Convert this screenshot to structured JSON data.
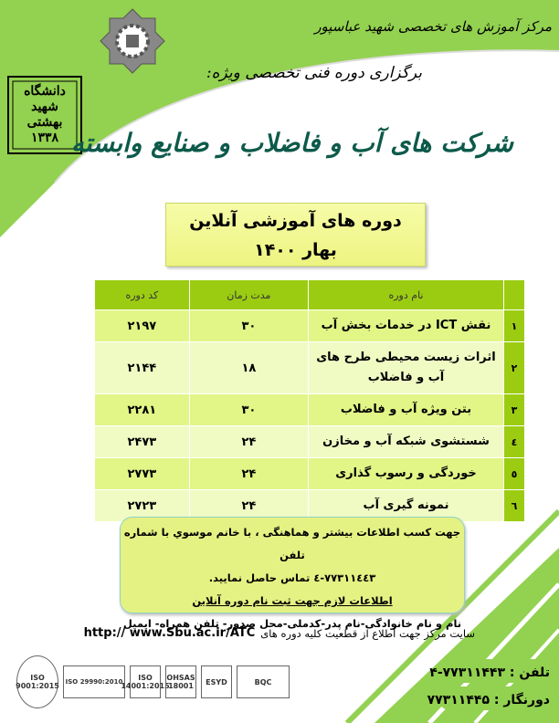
{
  "header": {
    "center_name": "مرکز آموزش های تخصصی شهید عباسپور",
    "subtitle": "برگزاری دوره فنی تخصصی ویژه:",
    "headline": "شرکت های آب و فاضلاب و صنایع وابسته",
    "university_logo_text": "دانشگاه شهید بهشتی ۱۳۳۸"
  },
  "title_box": {
    "line1": "دوره های آموزشی آنلاین",
    "line2": "بهار ۱۴۰۰"
  },
  "table": {
    "headers": {
      "name": "نام دوره",
      "duration": "مدت زمان",
      "code": "کد دوره"
    },
    "rows": [
      {
        "num": "۱",
        "name": "نقش ICT در خدمات بخش آب",
        "duration": "۳۰",
        "code": "۲۱۹۷"
      },
      {
        "num": "۲",
        "name": "اثرات زیست محیطی طرح های آب و فاضلاب",
        "duration": "۱۸",
        "code": "۲۱۴۴"
      },
      {
        "num": "۳",
        "name": "بتن ویژه آب و فاضلاب",
        "duration": "۳۰",
        "code": "۲۲۸۱"
      },
      {
        "num": "٤",
        "name": "شستشوی شبکه آب و مخازن",
        "duration": "۲۴",
        "code": "۲۴۷۳"
      },
      {
        "num": "٥",
        "name": "خوردگی و رسوب گذاری",
        "duration": "۲۴",
        "code": "۲۷۷۳"
      },
      {
        "num": "٦",
        "name": "نمونه گیری آب",
        "duration": "۲۴",
        "code": "۲۷۲۳"
      }
    ]
  },
  "info": {
    "line1": "جهت کسب اطلاعات بیشتر و هماهنگی ، با خانم موسوي  با شماره تلفن",
    "line2": "٧٧٣١١٤٤٣-٤ تماس حاصل نمایید.",
    "line3": "اطلاعات لازم جهت ثبت نام دوره آنلاین",
    "line4": "نام و نام خانوادگی-نام پدر-کدملی-محل صدور- تلفن همراه- ایمیل"
  },
  "website": {
    "text": "سایت مرکز جهت اطلاع از قطعیت کلیه دوره های",
    "url": "http:// www.Sbu.ac.ir/ATC"
  },
  "contact": {
    "phone_label": "تلفن :",
    "phone": "۷۷۳۱۱۴۴۳-۴",
    "fax_label": "دورنگار :",
    "fax": "۷۷۳۱۱۴۴۵"
  },
  "certifications": [
    "ISO 9001:2015",
    "ISO 29990:2010",
    "ISO 14001:2015",
    "OHSAS 18001",
    "ESYD",
    "BQC"
  ],
  "colors": {
    "green": "#93d150",
    "table_header": "#9ccc12",
    "headline": "#0d5a4a"
  }
}
